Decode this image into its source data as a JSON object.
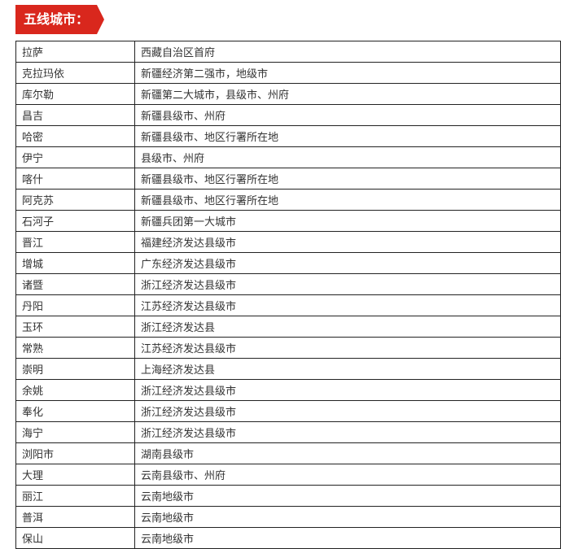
{
  "heading": "五线城市：",
  "accent_color": "#d9271d",
  "rows": [
    [
      "拉萨",
      "西藏自治区首府"
    ],
    [
      "克拉玛依",
      "新疆经济第二强市，地级市"
    ],
    [
      "库尔勒",
      "新疆第二大城市，县级市、州府"
    ],
    [
      "昌吉",
      "新疆县级市、州府"
    ],
    [
      "哈密",
      "新疆县级市、地区行署所在地"
    ],
    [
      "伊宁",
      "县级市、州府"
    ],
    [
      "喀什",
      "新疆县级市、地区行署所在地"
    ],
    [
      "阿克苏",
      "新疆县级市、地区行署所在地"
    ],
    [
      "石河子",
      "新疆兵团第一大城市"
    ],
    [
      "晋江",
      "福建经济发达县级市"
    ],
    [
      "增城",
      "广东经济发达县级市"
    ],
    [
      "诸暨",
      "浙江经济发达县级市"
    ],
    [
      "丹阳",
      "江苏经济发达县级市"
    ],
    [
      "玉环",
      "浙江经济发达县"
    ],
    [
      "常熟",
      "江苏经济发达县级市"
    ],
    [
      "崇明",
      "上海经济发达县"
    ],
    [
      "余姚",
      "浙江经济发达县级市"
    ],
    [
      "奉化",
      "浙江经济发达县级市"
    ],
    [
      "海宁",
      "浙江经济发达县级市"
    ],
    [
      "浏阳市",
      "湖南县级市"
    ],
    [
      "大理",
      "云南县级市、州府"
    ],
    [
      "丽江",
      "云南地级市"
    ],
    [
      "普洱",
      "云南地级市"
    ],
    [
      "保山",
      "云南地级市"
    ]
  ]
}
